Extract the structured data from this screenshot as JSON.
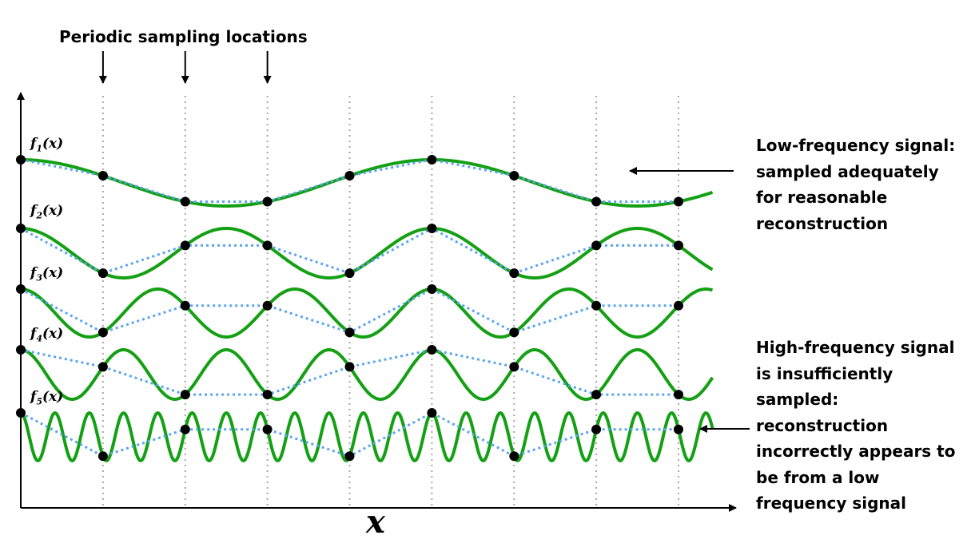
{
  "title": "Periodic sampling locations",
  "axis_label_x": "x",
  "colors": {
    "signal": "#14a014",
    "reconstruction": "#5aa5f0",
    "sample_point": "#000000",
    "sample_line": "#a8a8a8",
    "axis": "#000000"
  },
  "signal_labels": [
    "f1(x)",
    "f2(x)",
    "f3(x)",
    "f4(x)",
    "f5(x)"
  ],
  "annotations": {
    "low_freq": [
      "Low-frequency signal:",
      "sampled adequately",
      "for reasonable",
      "reconstruction"
    ],
    "high_freq": [
      "High-frequency signal",
      "is insufficiently",
      "sampled:",
      "reconstruction",
      "incorrectly appears to",
      "be from a low",
      "frequency signal"
    ]
  },
  "sampling": {
    "sample_count": 9,
    "arrowed_sample_indices": [
      1,
      2,
      3
    ]
  },
  "signals": [
    {
      "name": "f1(x)",
      "amplitude": 29,
      "cycles_per_sample": 0.2,
      "phase": 0
    },
    {
      "name": "f2(x)",
      "amplitude": 31,
      "cycles_per_sample": 0.4,
      "phase": 0
    },
    {
      "name": "f3(x)",
      "amplitude": 30,
      "cycles_per_sample": 0.6,
      "phase": 0
    },
    {
      "name": "f4(x)",
      "amplitude": 31,
      "cycles_per_sample": 0.8,
      "phase": 0
    },
    {
      "name": "f5(x)",
      "amplitude": 30,
      "cycles_per_sample": 2.4,
      "phase": 0
    }
  ]
}
